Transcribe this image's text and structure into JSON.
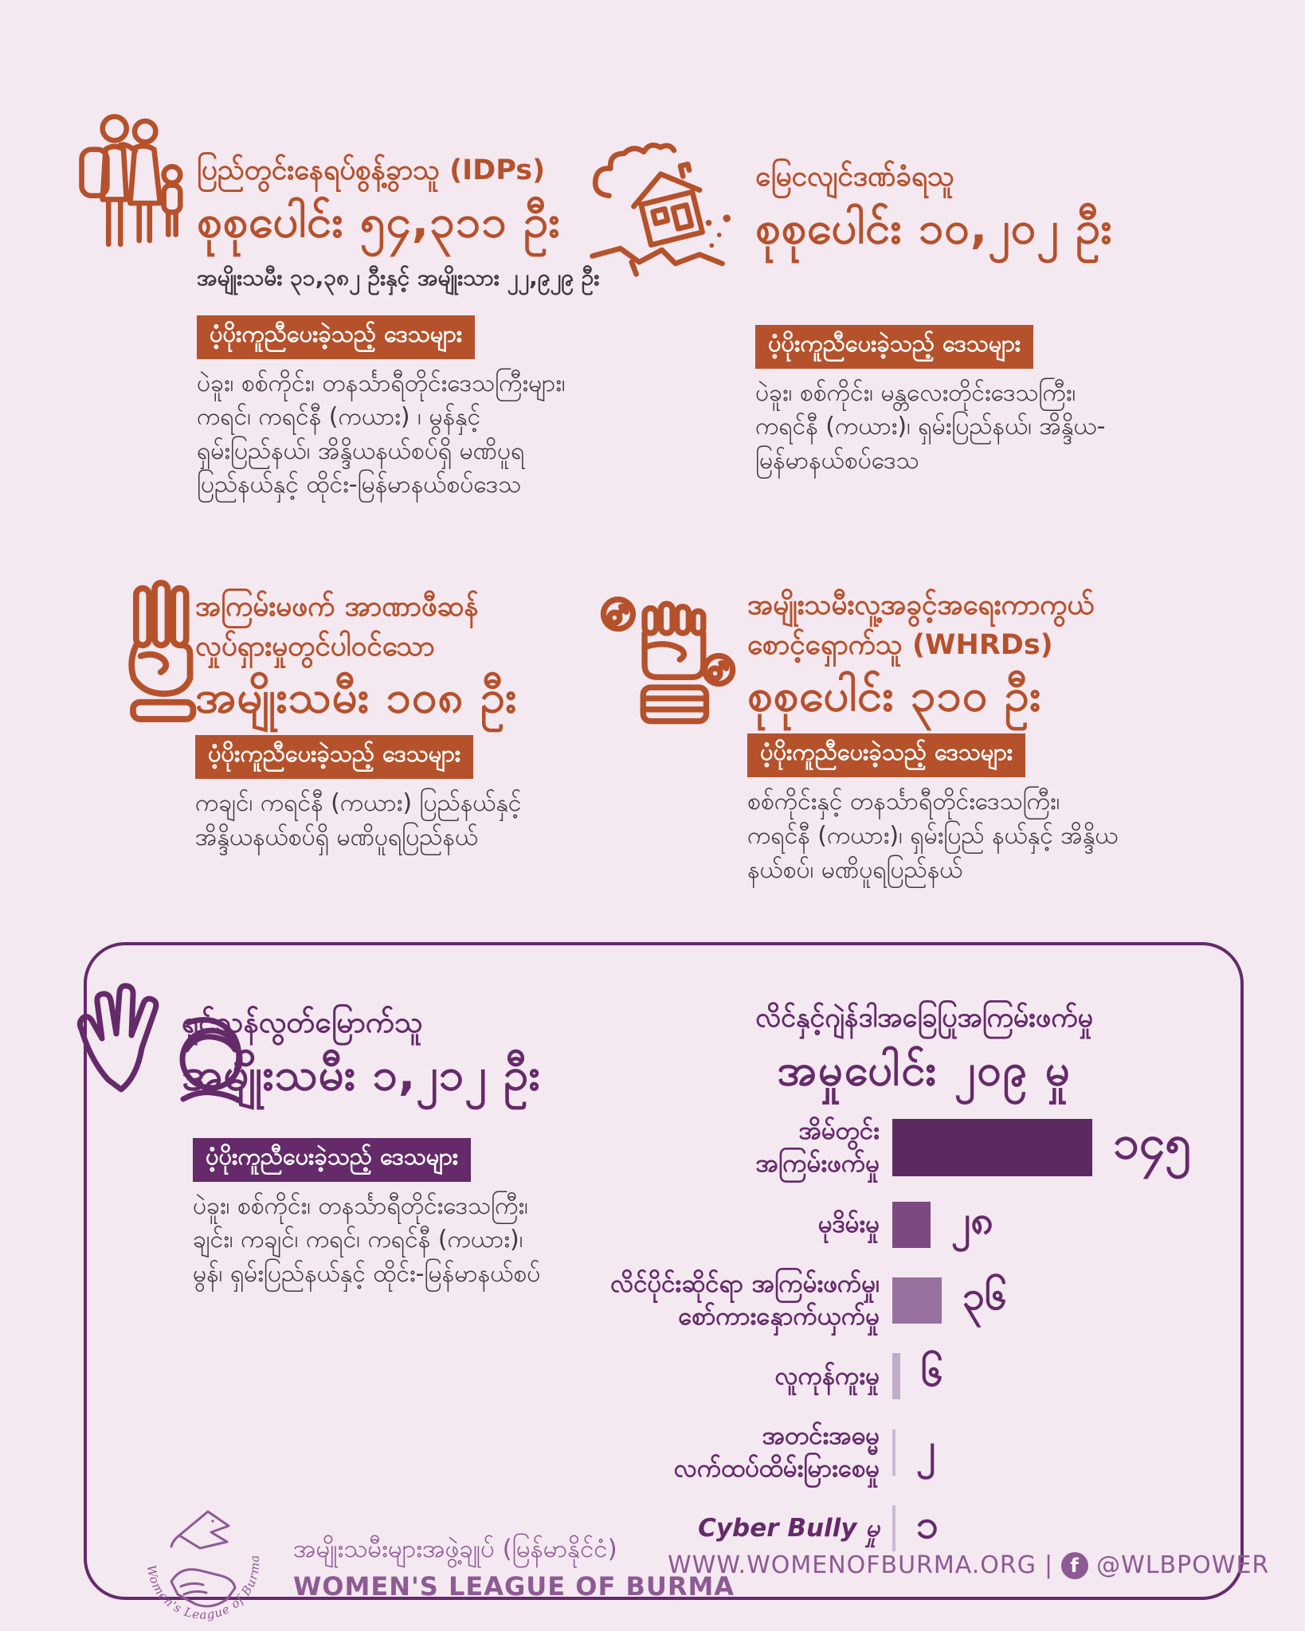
{
  "page": {
    "background": "#f4e8f1",
    "accent_orange": "#b5512b",
    "accent_purple": "#642a69",
    "footer_purple": "#8d5a93"
  },
  "labels": {
    "areas_heading": "ပံ့ပိုးကူညီပေးခဲ့သည့် ဒေသများ"
  },
  "sections": {
    "idp": {
      "title": "ပြည်တွင်းနေရပ်စွန့်ခွာသူ (IDPs)",
      "total": "စုစုပေါင်း ၅၄,၃၁၁ ဦး",
      "total_value": 54311,
      "breakdown": "အမျိုးသမီး ၃၁,၃၈၂ ဦးနှင့် အမျိုးသား ၂၂,၉၂၉ ဦး",
      "areas": "ပဲခူး၊ စစ်ကိုင်း၊ တနင်္သာရီတိုင်းဒေသကြီးများ၊\nကရင်၊ ကရင်နီ (ကယား) ၊ မွန်နှင့်\nရှမ်းပြည်နယ်၊ အိန္ဒိယနယ်စပ်ရှိ မဏိပူရ\nပြည်နယ်နှင့် ထိုင်း-မြန်မာနယ်စပ်ဒေသ"
    },
    "earthquake": {
      "title": "မြေငလျင်ဒဏ်ခံရသူ",
      "total": "စုစုပေါင်း ၁၀,၂၀၂ ဦး",
      "total_value": 10202,
      "areas": "ပဲခူး၊ စစ်ကိုင်း၊ မန္တလေးတိုင်းဒေသကြီး၊\nကရင်နီ (ကယား)၊ ရှမ်းပြည်နယ်၊ အိန္ဒိယ-\nမြန်မာနယ်စပ်ဒေသ"
    },
    "cdm": {
      "title": "အကြမ်းမဖက် အာဏာဖီဆန်\nလှုပ်ရှားမှုတွင်ပါဝင်သော",
      "total": "အမျိုးသမီး ၁၀၈ ဦး",
      "total_value": 108,
      "areas": "ကချင်၊ ကရင်နီ (ကယား) ပြည်နယ်နှင့်\nအိန္ဒိယနယ်စပ်ရှိ မဏိပူရပြည်နယ်"
    },
    "whrd": {
      "title": "အမျိုးသမီးလူ့အခွင့်အရေးကာကွယ်\nစောင့်ရှောက်သူ (WHRDs)",
      "total": "စုစုပေါင်း ၃၁၀ ဦး",
      "total_value": 310,
      "areas": "စစ်ကိုင်းနှင့် တနင်္သာရီတိုင်းဒေသကြီး၊\nကရင်နီ (ကယား)၊ ရှမ်းပြည် နယ်နှင့် အိန္ဒိယ\nနယ်စပ်၊ မဏိပူရပြည်နယ်"
    },
    "survivors": {
      "title": "ရှင်သန်လွတ်မြောက်သူ",
      "total": "အမျိုးသမီး ၁,၂၁၂ ဦး",
      "total_value": 1212,
      "areas": "ပဲခူး၊ စစ်ကိုင်း၊ တနင်္သာရီတိုင်းဒေသကြီး၊\nချင်း၊ ကချင်၊ ကရင်၊ ကရင်နီ (ကယား)၊\nမွန်၊ ရှမ်းပြည်နယ်နှင့် ထိုင်း-မြန်မာနယ်စပ်"
    }
  },
  "chart_data": {
    "type": "bar",
    "orientation": "horizontal",
    "title": "လိင်နှင့်ဂျဲန်ဒါအခြေပြုအကြမ်းဖက်မှု",
    "total_label": "အမှုပေါင်း ၂၀၉ မှု",
    "total_value": 209,
    "categories": [
      "အိမ်တွင်း အကြမ်းဖက်မှု",
      "မုဒိမ်းမှု",
      "လိင်ပိုင်းဆိုင်ရာ အကြမ်းဖက်မှု၊ စော်ကားနှောက်ယှက်မှု",
      "လူကုန်ကူးမှု",
      "အတင်းအဓမ္မ လက်ထပ်ထိမ်းမြားစေမှု",
      "Cyber Bully မှု"
    ],
    "values": [
      145,
      28,
      36,
      6,
      2,
      1
    ],
    "xlim": [
      0,
      150
    ],
    "legend": "none",
    "grid": false,
    "rows": [
      {
        "label": "အိမ်တွင်း\nအကြမ်းဖက်မှု",
        "value": 145,
        "value_label": "၁၄၅",
        "color": "#5c2961"
      },
      {
        "label": "မုဒိမ်းမှု",
        "value": 28,
        "value_label": "၂၈",
        "color": "#7c4981"
      },
      {
        "label": "လိင်ပိုင်းဆိုင်ရာ အကြမ်းဖက်မှု၊\nစော်ကားနှောက်ယှက်မှု",
        "value": 36,
        "value_label": "၃၆",
        "color": "#97719d"
      },
      {
        "label": "လူကုန်ကူးမှု",
        "value": 6,
        "value_label": "၆",
        "color": "#c2adc9"
      },
      {
        "label": "အတင်းအဓမ္မ\nလက်ထပ်ထိမ်းမြားစေမှု",
        "value": 2,
        "value_label": "၂",
        "color": "#cbb8d2"
      },
      {
        "label": "Cyber Bully မှု",
        "value": 1,
        "value_label": "၁",
        "color": "#cbb8d2",
        "italic": true
      }
    ]
  },
  "footer": {
    "org_burmese": "အမျိုးသမီးများအဖွဲ့ချုပ် (မြန်မာနိုင်ငံ)",
    "org_english": "WOMEN'S LEAGUE OF BURMA",
    "website": "WWW.WOMENOFBURMA.ORG",
    "separator": "|",
    "social": "@WLBPOWER",
    "logo_text": "Women's League of Burma",
    "facebook_icon_letter": "f"
  }
}
